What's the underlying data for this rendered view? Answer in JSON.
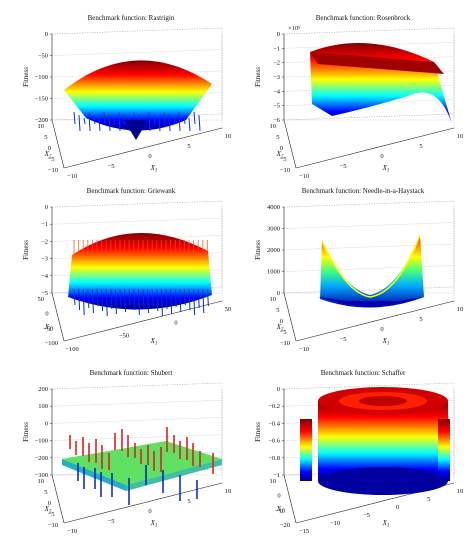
{
  "chart_data": [
    {
      "type": "surface",
      "title": "Benchmark function: Rastrigin",
      "zlabel": "Fitness",
      "xlabel": "X_1",
      "ylabel": "X_2",
      "x_ticks": [
        "−10",
        "−5",
        "0",
        "5",
        "10"
      ],
      "y_ticks": [
        "−10",
        "−5",
        "0",
        "5",
        "10"
      ],
      "z_ticks": [
        "0",
        "−50",
        "−100",
        "−150",
        "−200"
      ],
      "xlim": [
        -10,
        10
      ],
      "ylim": [
        -10,
        10
      ],
      "zlim": [
        -200,
        0
      ],
      "exponent_label": ""
    },
    {
      "type": "surface",
      "title": "Benchmark function: Rosenbrock",
      "zlabel": "Fitness",
      "xlabel": "X_1",
      "ylabel": "X_2",
      "x_ticks": [
        "−10",
        "−5",
        "0",
        "5",
        "10"
      ],
      "y_ticks": [
        "−10",
        "−5",
        "0",
        "5",
        "10"
      ],
      "z_ticks": [
        "0",
        "−1",
        "−2",
        "−3",
        "−4",
        "−5",
        "−6"
      ],
      "xlim": [
        -10,
        10
      ],
      "ylim": [
        -10,
        10
      ],
      "zlim": [
        -6,
        0
      ],
      "exponent_label": "×10⁵"
    },
    {
      "type": "surface",
      "title": "Benchmark function: Griewank",
      "zlabel": "Fitness",
      "xlabel": "X_1",
      "ylabel": "X_2",
      "x_ticks": [
        "−100",
        "−50",
        "0",
        "50"
      ],
      "y_ticks": [
        "−100",
        "−50",
        "0",
        "50"
      ],
      "z_ticks": [
        "0",
        "−1",
        "−2",
        "−3",
        "−4",
        "−5"
      ],
      "xlim": [
        -100,
        50
      ],
      "ylim": [
        -100,
        50
      ],
      "zlim": [
        -5,
        0
      ],
      "exponent_label": ""
    },
    {
      "type": "surface",
      "title": "Benchmark function: Needle-in-a-Haystack",
      "zlabel": "Fitness",
      "xlabel": "X_1",
      "ylabel": "X_2",
      "x_ticks": [
        "−10",
        "−5",
        "0",
        "5",
        "10"
      ],
      "y_ticks": [
        "−10",
        "−5",
        "0",
        "5",
        "10"
      ],
      "z_ticks": [
        "4000",
        "3000",
        "2000",
        "1000",
        "0"
      ],
      "xlim": [
        -10,
        10
      ],
      "ylim": [
        -10,
        10
      ],
      "zlim": [
        0,
        4000
      ],
      "exponent_label": ""
    },
    {
      "type": "surface",
      "title": "Benchmark function: Shubert",
      "zlabel": "Fitness",
      "xlabel": "X_1",
      "ylabel": "X_2",
      "x_ticks": [
        "−10",
        "−5",
        "0",
        "5",
        "10"
      ],
      "y_ticks": [
        "−10",
        "−5",
        "0",
        "5",
        "10"
      ],
      "z_ticks": [
        "200",
        "100",
        "0",
        "−100",
        "−200",
        "−300"
      ],
      "xlim": [
        -10,
        10
      ],
      "ylim": [
        -10,
        10
      ],
      "zlim": [
        -300,
        200
      ],
      "exponent_label": ""
    },
    {
      "type": "surface",
      "title": "Benchmark function: Schaffer",
      "zlabel": "Fitness",
      "xlabel": "X_1",
      "ylabel": "X_2",
      "x_ticks": [
        "−15",
        "−10",
        "−5",
        "0",
        "5",
        "10"
      ],
      "y_ticks": [
        "−20",
        "−10",
        "0",
        "10"
      ],
      "z_ticks": [
        "0",
        "−0.2",
        "−0.4",
        "−0.6",
        "−0.8",
        "−1"
      ],
      "xlim": [
        -15,
        10
      ],
      "ylim": [
        -20,
        10
      ],
      "zlim": [
        -1,
        0
      ],
      "exponent_label": ""
    }
  ]
}
